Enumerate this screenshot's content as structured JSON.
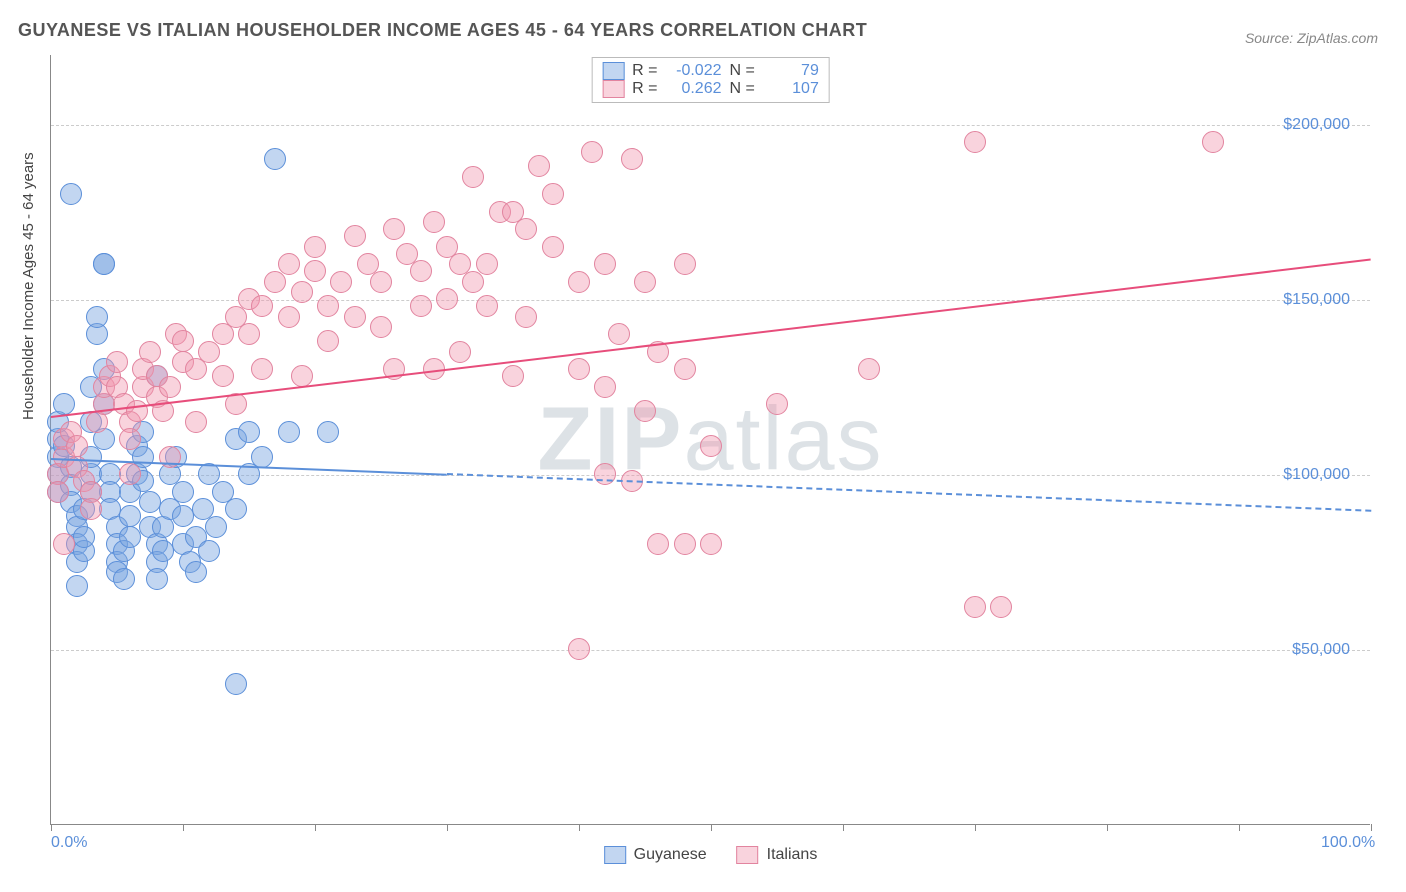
{
  "title": "GUYANESE VS ITALIAN HOUSEHOLDER INCOME AGES 45 - 64 YEARS CORRELATION CHART",
  "source": "Source: ZipAtlas.com",
  "watermark_a": "ZIP",
  "watermark_b": "atlas",
  "chart": {
    "type": "scatter",
    "ylabel": "Householder Income Ages 45 - 64 years",
    "xlim": [
      0,
      100
    ],
    "ylim": [
      0,
      220000
    ],
    "xtick_labels": {
      "0": "0.0%",
      "100": "100.0%"
    },
    "xtick_marks": [
      0,
      10,
      20,
      30,
      40,
      50,
      60,
      70,
      80,
      90,
      100
    ],
    "ytick_labels": {
      "50000": "$50,000",
      "100000": "$100,000",
      "150000": "$150,000",
      "200000": "$200,000"
    },
    "grid_color": "#cccccc",
    "background_color": "#ffffff",
    "series": {
      "guyanese": {
        "label": "Guyanese",
        "fill": "rgba(120,165,225,0.45)",
        "stroke": "#5b8fd9",
        "marker_radius": 11,
        "R": "-0.022",
        "N": "79",
        "trend": {
          "x0": 0,
          "y0": 105000,
          "x1": 100,
          "y1": 90000,
          "color": "#5b8fd9",
          "solid_until_x": 30,
          "width": 2.5
        },
        "points": [
          [
            0.5,
            105000
          ],
          [
            0.5,
            100000
          ],
          [
            0.5,
            95000
          ],
          [
            0.5,
            110000
          ],
          [
            0.5,
            115000
          ],
          [
            1,
            120000
          ],
          [
            1,
            108000
          ],
          [
            1.5,
            102000
          ],
          [
            1.5,
            97000
          ],
          [
            1.5,
            92000
          ],
          [
            2,
            88000
          ],
          [
            2,
            85000
          ],
          [
            2,
            80000
          ],
          [
            2,
            75000
          ],
          [
            2.5,
            78000
          ],
          [
            2.5,
            82000
          ],
          [
            2.5,
            90000
          ],
          [
            3,
            95000
          ],
          [
            3,
            100000
          ],
          [
            3,
            105000
          ],
          [
            3,
            115000
          ],
          [
            3,
            125000
          ],
          [
            3.5,
            140000
          ],
          [
            3.5,
            145000
          ],
          [
            1.5,
            180000
          ],
          [
            4,
            160000
          ],
          [
            4,
            160000
          ],
          [
            4,
            130000
          ],
          [
            4,
            120000
          ],
          [
            4,
            110000
          ],
          [
            4.5,
            100000
          ],
          [
            4.5,
            95000
          ],
          [
            4.5,
            90000
          ],
          [
            5,
            85000
          ],
          [
            5,
            80000
          ],
          [
            5,
            75000
          ],
          [
            5,
            72000
          ],
          [
            5.5,
            70000
          ],
          [
            5.5,
            78000
          ],
          [
            6,
            82000
          ],
          [
            6,
            88000
          ],
          [
            6,
            95000
          ],
          [
            6.5,
            100000
          ],
          [
            6.5,
            108000
          ],
          [
            7,
            112000
          ],
          [
            7,
            105000
          ],
          [
            7,
            98000
          ],
          [
            7.5,
            92000
          ],
          [
            7.5,
            85000
          ],
          [
            8,
            80000
          ],
          [
            8,
            75000
          ],
          [
            8,
            70000
          ],
          [
            8.5,
            78000
          ],
          [
            8.5,
            85000
          ],
          [
            9,
            90000
          ],
          [
            9,
            100000
          ],
          [
            9.5,
            105000
          ],
          [
            10,
            95000
          ],
          [
            10,
            88000
          ],
          [
            10,
            80000
          ],
          [
            10.5,
            75000
          ],
          [
            11,
            82000
          ],
          [
            11,
            72000
          ],
          [
            11.5,
            90000
          ],
          [
            12,
            100000
          ],
          [
            12,
            78000
          ],
          [
            12.5,
            85000
          ],
          [
            13,
            95000
          ],
          [
            14,
            110000
          ],
          [
            14,
            90000
          ],
          [
            15,
            100000
          ],
          [
            15,
            112000
          ],
          [
            16,
            105000
          ],
          [
            17,
            190000
          ],
          [
            18,
            112000
          ],
          [
            21,
            112000
          ],
          [
            14,
            40000
          ],
          [
            2,
            68000
          ],
          [
            8,
            128000
          ]
        ]
      },
      "italians": {
        "label": "Italians",
        "fill": "rgba(240,150,175,0.42)",
        "stroke": "#e2849f",
        "marker_radius": 11,
        "R": "0.262",
        "N": "107",
        "trend": {
          "x0": 0,
          "y0": 117000,
          "x1": 100,
          "y1": 162000,
          "color": "#e74d7b",
          "solid_until_x": 100,
          "width": 2.5
        },
        "points": [
          [
            0.5,
            100000
          ],
          [
            0.5,
            95000
          ],
          [
            1,
            105000
          ],
          [
            1,
            110000
          ],
          [
            1.5,
            112000
          ],
          [
            2,
            108000
          ],
          [
            2,
            102000
          ],
          [
            2.5,
            98000
          ],
          [
            3,
            95000
          ],
          [
            3,
            90000
          ],
          [
            1,
            80000
          ],
          [
            3.5,
            115000
          ],
          [
            4,
            120000
          ],
          [
            4,
            125000
          ],
          [
            4.5,
            128000
          ],
          [
            5,
            132000
          ],
          [
            5,
            125000
          ],
          [
            5.5,
            120000
          ],
          [
            6,
            115000
          ],
          [
            6,
            110000
          ],
          [
            6.5,
            118000
          ],
          [
            7,
            125000
          ],
          [
            7,
            130000
          ],
          [
            7.5,
            135000
          ],
          [
            8,
            128000
          ],
          [
            8,
            122000
          ],
          [
            8.5,
            118000
          ],
          [
            9,
            125000
          ],
          [
            9.5,
            140000
          ],
          [
            10,
            132000
          ],
          [
            10,
            138000
          ],
          [
            11,
            130000
          ],
          [
            12,
            135000
          ],
          [
            13,
            140000
          ],
          [
            13,
            128000
          ],
          [
            14,
            145000
          ],
          [
            15,
            150000
          ],
          [
            15,
            140000
          ],
          [
            16,
            148000
          ],
          [
            17,
            155000
          ],
          [
            18,
            145000
          ],
          [
            18,
            160000
          ],
          [
            19,
            152000
          ],
          [
            20,
            158000
          ],
          [
            20,
            165000
          ],
          [
            21,
            148000
          ],
          [
            22,
            155000
          ],
          [
            23,
            168000
          ],
          [
            24,
            160000
          ],
          [
            25,
            142000
          ],
          [
            25,
            155000
          ],
          [
            26,
            170000
          ],
          [
            27,
            163000
          ],
          [
            28,
            158000
          ],
          [
            29,
            172000
          ],
          [
            30,
            150000
          ],
          [
            30,
            165000
          ],
          [
            31,
            160000
          ],
          [
            32,
            155000
          ],
          [
            33,
            148000
          ],
          [
            34,
            175000
          ],
          [
            35,
            128000
          ],
          [
            36,
            170000
          ],
          [
            37,
            188000
          ],
          [
            38,
            180000
          ],
          [
            40,
            130000
          ],
          [
            40,
            155000
          ],
          [
            41,
            192000
          ],
          [
            42,
            160000
          ],
          [
            43,
            140000
          ],
          [
            44,
            190000
          ],
          [
            45,
            118000
          ],
          [
            46,
            135000
          ],
          [
            48,
            160000
          ],
          [
            50,
            108000
          ],
          [
            42,
            100000
          ],
          [
            44,
            98000
          ],
          [
            40,
            50000
          ],
          [
            46,
            80000
          ],
          [
            48,
            80000
          ],
          [
            50,
            80000
          ],
          [
            55,
            120000
          ],
          [
            48,
            130000
          ],
          [
            35,
            175000
          ],
          [
            32,
            185000
          ],
          [
            6,
            100000
          ],
          [
            9,
            105000
          ],
          [
            11,
            115000
          ],
          [
            14,
            120000
          ],
          [
            16,
            130000
          ],
          [
            19,
            128000
          ],
          [
            21,
            138000
          ],
          [
            23,
            145000
          ],
          [
            26,
            130000
          ],
          [
            28,
            148000
          ],
          [
            62,
            130000
          ],
          [
            70,
            195000
          ],
          [
            70,
            62000
          ],
          [
            72,
            62000
          ],
          [
            88,
            195000
          ],
          [
            29,
            130000
          ],
          [
            31,
            135000
          ],
          [
            33,
            160000
          ],
          [
            36,
            145000
          ],
          [
            38,
            165000
          ],
          [
            42,
            125000
          ],
          [
            45,
            155000
          ]
        ]
      }
    }
  }
}
